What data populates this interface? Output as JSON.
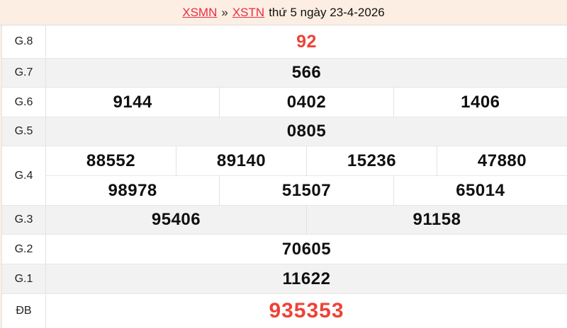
{
  "page": {
    "bg_color": "#fceee2",
    "row_alt_color": "#f2f2f2",
    "border_color": "#e2e2e2",
    "link_color": "#e52e44",
    "highlight_color": "#ee4237"
  },
  "header": {
    "region_link": "XSMN",
    "separator": "»",
    "province_link": "XSTN",
    "suffix": "thứ 5 ngày 23-4-2026"
  },
  "results": {
    "rows": [
      {
        "label": "G.8",
        "values": [
          "92"
        ],
        "highlight": true
      },
      {
        "label": "G.7",
        "values": [
          "566"
        ]
      },
      {
        "label": "G.6",
        "values": [
          "9144",
          "0402",
          "1406"
        ]
      },
      {
        "label": "G.5",
        "values": [
          "0805"
        ]
      },
      {
        "label": "G.4",
        "lines": [
          [
            "88552",
            "89140",
            "15236",
            "47880"
          ],
          [
            "98978",
            "51507",
            "65014"
          ]
        ]
      },
      {
        "label": "G.3",
        "values": [
          "95406",
          "91158"
        ]
      },
      {
        "label": "G.2",
        "values": [
          "70605"
        ]
      },
      {
        "label": "G.1",
        "values": [
          "11622"
        ]
      },
      {
        "label": "ĐB",
        "values": [
          "935353"
        ],
        "highlight": true
      }
    ]
  }
}
